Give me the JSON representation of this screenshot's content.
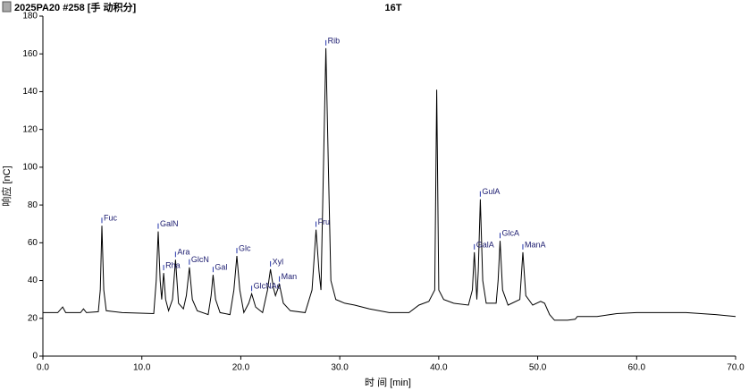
{
  "header": "2025PA20 #258 [手 动积分]",
  "chart_data": {
    "type": "line",
    "title": "16T",
    "x_label": "时 间 [min]",
    "y_label": "响应 [nC]",
    "xlim": [
      0,
      70
    ],
    "ylim": [
      0,
      180
    ],
    "xticks": [
      {
        "value": 0,
        "label": "0.0"
      },
      {
        "value": 10,
        "label": "10.0"
      },
      {
        "value": 20,
        "label": "20.0"
      },
      {
        "value": 30,
        "label": "30.0"
      },
      {
        "value": 40,
        "label": "40.0"
      },
      {
        "value": 50,
        "label": "50.0"
      },
      {
        "value": 60,
        "label": "60.0"
      },
      {
        "value": 70,
        "label": "70.0"
      }
    ],
    "yticks": [
      0,
      20,
      40,
      60,
      80,
      100,
      120,
      140,
      160,
      180
    ],
    "series": [
      {
        "color": "#000000",
        "x": [
          0,
          1.5,
          2,
          2.3,
          3.8,
          4.1,
          4.4,
          5.6,
          5.8,
          5.96,
          6.15,
          6.4,
          8,
          11.2,
          11.45,
          11.65,
          11.85,
          12.0,
          12.2,
          12.4,
          12.7,
          13.1,
          13.4,
          13.7,
          14.2,
          14.5,
          14.8,
          15.1,
          15.6,
          16.7,
          17.0,
          17.2,
          17.45,
          17.9,
          18.9,
          19.3,
          19.6,
          19.9,
          20.3,
          20.8,
          21.1,
          21.5,
          22.2,
          22.7,
          23.0,
          23.3,
          23.5,
          23.9,
          24.3,
          25,
          26.5,
          27.2,
          27.6,
          27.9,
          28.1,
          28.35,
          28.6,
          28.85,
          29.1,
          29.6,
          30.5,
          31.5,
          33,
          35,
          37,
          38,
          39,
          39.6,
          39.8,
          40.0,
          40.5,
          41.5,
          43,
          43.4,
          43.6,
          43.85,
          44.0,
          44.2,
          44.45,
          44.8,
          45.8,
          46.0,
          46.2,
          46.45,
          47,
          48.2,
          48.5,
          48.8,
          49.5,
          50.3,
          50.7,
          51.2,
          51.7,
          53,
          53.8,
          54,
          56,
          58,
          60,
          65,
          68,
          70
        ],
        "values": [
          23,
          23,
          26,
          23,
          23,
          25,
          23,
          23.5,
          35,
          69,
          35,
          24,
          23,
          22.5,
          40,
          66,
          40,
          30,
          44,
          30,
          24,
          30,
          51,
          28,
          25,
          32,
          47,
          30,
          24,
          22,
          32,
          43,
          30,
          23,
          22,
          35,
          53,
          35,
          23,
          28,
          33,
          26,
          23,
          35,
          46,
          36,
          32,
          38,
          28,
          24,
          23,
          35,
          67,
          45,
          35,
          100,
          163,
          100,
          40,
          30,
          28,
          27,
          25,
          23,
          23,
          27,
          29,
          35,
          141,
          35,
          30,
          28,
          27,
          35,
          55,
          30,
          45,
          83,
          40,
          28,
          28,
          40,
          61,
          35,
          27,
          30,
          55,
          32,
          27,
          29,
          28,
          22,
          19,
          19,
          19.5,
          21,
          21,
          22.5,
          23,
          23,
          22,
          21
        ]
      }
    ],
    "annotations": [
      {
        "x": 5.96,
        "y": 69,
        "label": "Fuc"
      },
      {
        "x": 11.65,
        "y": 66,
        "label": "GalN"
      },
      {
        "x": 12.2,
        "y": 44,
        "label": "Rha"
      },
      {
        "x": 13.4,
        "y": 51,
        "label": "Ara"
      },
      {
        "x": 14.8,
        "y": 47,
        "label": "GlcN"
      },
      {
        "x": 17.2,
        "y": 43,
        "label": "Gal"
      },
      {
        "x": 19.6,
        "y": 53,
        "label": "Glc"
      },
      {
        "x": 21.1,
        "y": 33,
        "label": "GlcNAc"
      },
      {
        "x": 23.0,
        "y": 46,
        "label": "Xyl"
      },
      {
        "x": 23.9,
        "y": 38,
        "label": "Man"
      },
      {
        "x": 27.6,
        "y": 67,
        "label": "Fru"
      },
      {
        "x": 28.6,
        "y": 163,
        "label": "Rib"
      },
      {
        "x": 43.6,
        "y": 55,
        "label": "GalA"
      },
      {
        "x": 44.2,
        "y": 83,
        "label": "GulA"
      },
      {
        "x": 46.2,
        "y": 61,
        "label": "GlcA"
      },
      {
        "x": 48.5,
        "y": 55,
        "label": "ManA"
      }
    ]
  }
}
